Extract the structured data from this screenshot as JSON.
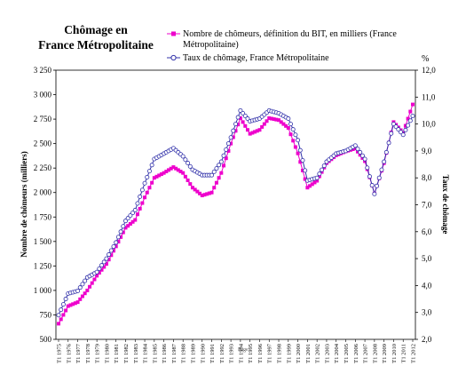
{
  "chart_data": {
    "type": "line",
    "title_lines": [
      "Chômage en",
      "France Métropolitaine"
    ],
    "ylabel_left": "Nombre de chômeurs (milliers)",
    "ylabel_right": "Taux de chômage",
    "right_unit": "%",
    "center_note": "Page",
    "ylim_left": [
      500,
      3250
    ],
    "ylim_right": [
      2.0,
      12.0
    ],
    "left_ticks": [
      "500",
      "750",
      "1 000",
      "1 250",
      "1 500",
      "1 750",
      "2 000",
      "2 250",
      "2 500",
      "2 750",
      "3 000",
      "3 250"
    ],
    "right_ticks": [
      "2,0",
      "3,0",
      "4,0",
      "5,0",
      "6,0",
      "7,0",
      "8,0",
      "9,0",
      "10,0",
      "11,0",
      "12,0"
    ],
    "categories": [
      "T1 1975",
      "T1 1976",
      "T1 1977",
      "T1 1978",
      "T1 1979",
      "T1 1980",
      "T1 1981",
      "T1 1982",
      "T1 1983",
      "T1 1984",
      "T1 1985",
      "T1 1986",
      "T1 1987",
      "T1 1988",
      "T1 1989",
      "T1 1990",
      "T1 1991",
      "T1 1992",
      "T1 1993",
      "T1 1994",
      "T1 1995",
      "T1 1996",
      "T1 1997",
      "T1 1998",
      "T1 1999",
      "T1 2000",
      "T1 2001",
      "T1 2002",
      "T1 2003",
      "T1 2004",
      "T1 2005",
      "T1 2006",
      "T1 2007",
      "T1 2008",
      "T1 2009",
      "T1 2010",
      "T1 2011",
      "T1 2012"
    ],
    "series": [
      {
        "name": "Nombre de chômeurs, définition du BIT, en milliers (France Métropolitaine)",
        "axis": "left",
        "color": "#ee00cc",
        "marker": "square-filled",
        "values": [
          660,
          840,
          880,
          1000,
          1150,
          1270,
          1450,
          1640,
          1720,
          1950,
          2150,
          2200,
          2260,
          2200,
          2050,
          1970,
          2000,
          2200,
          2500,
          2760,
          2600,
          2640,
          2760,
          2740,
          2660,
          2400,
          2050,
          2120,
          2300,
          2380,
          2420,
          2450,
          2320,
          1990,
          2300,
          2720,
          2610,
          2900
        ]
      },
      {
        "name": "Taux de chômage, France Métropolitaine",
        "axis": "right",
        "color": "#3333aa",
        "marker": "circle-open",
        "values": [
          2.9,
          3.7,
          3.8,
          4.3,
          4.5,
          5.0,
          5.6,
          6.4,
          6.8,
          7.8,
          8.7,
          8.9,
          9.1,
          8.8,
          8.3,
          8.1,
          8.1,
          8.6,
          9.5,
          10.5,
          10.1,
          10.2,
          10.5,
          10.4,
          10.2,
          9.4,
          7.9,
          8.0,
          8.6,
          8.9,
          9.0,
          9.2,
          8.7,
          7.4,
          8.6,
          10.0,
          9.6,
          10.3
        ]
      }
    ],
    "legend_position": "top-right",
    "grid": false
  }
}
